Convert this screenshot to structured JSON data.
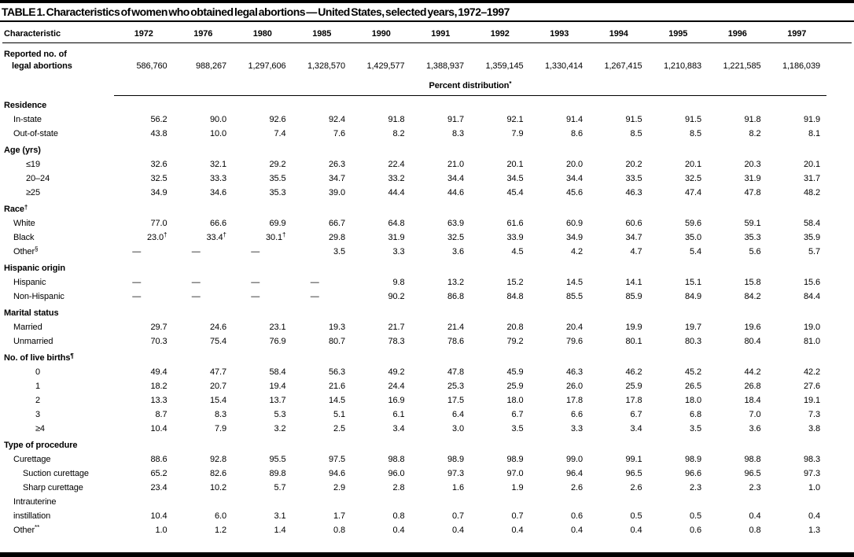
{
  "title": "TABLE 1. Characteristics of women who obtained legal abortions — United States, selected years, 1972–1997",
  "header": {
    "characteristic_label": "Characteristic",
    "years": [
      "1972",
      "1976",
      "1980",
      "1985",
      "1990",
      "1991",
      "1992",
      "1993",
      "1994",
      "1995",
      "1996",
      "1997"
    ]
  },
  "reported_row": {
    "label_lines": [
      "Reported no. of",
      "legal abortions"
    ],
    "values": [
      "586,760",
      "988,267",
      "1,297,606",
      "1,328,570",
      "1,429,577",
      "1,388,937",
      "1,359,145",
      "1,330,414",
      "1,267,415",
      "1,210,883",
      "1,221,585",
      "1,186,039"
    ]
  },
  "percent_distribution_label": "Percent distribution*",
  "sections": [
    {
      "header": "Residence",
      "rows": [
        {
          "label": "In-state",
          "indent": 1,
          "values": [
            "56.2",
            "90.0",
            "92.6",
            "92.4",
            "91.8",
            "91.7",
            "92.1",
            "91.4",
            "91.5",
            "91.5",
            "91.8",
            "91.9"
          ]
        },
        {
          "label": "Out-of-state",
          "indent": 1,
          "values": [
            "43.8",
            "10.0",
            "7.4",
            "7.6",
            "8.2",
            "8.3",
            "7.9",
            "8.6",
            "8.5",
            "8.5",
            "8.2",
            "8.1"
          ]
        }
      ]
    },
    {
      "header": "Age (yrs)",
      "rows": [
        {
          "label": "≤19",
          "indent": 3,
          "values": [
            "32.6",
            "32.1",
            "29.2",
            "26.3",
            "22.4",
            "21.0",
            "20.1",
            "20.0",
            "20.2",
            "20.1",
            "20.3",
            "20.1"
          ]
        },
        {
          "label": "20–24",
          "indent": 3,
          "values": [
            "32.5",
            "33.3",
            "35.5",
            "34.7",
            "33.2",
            "34.4",
            "34.5",
            "34.4",
            "33.5",
            "32.5",
            "31.9",
            "31.7"
          ]
        },
        {
          "label": "≥25",
          "indent": 3,
          "values": [
            "34.9",
            "34.6",
            "35.3",
            "39.0",
            "44.4",
            "44.6",
            "45.4",
            "45.6",
            "46.3",
            "47.4",
            "47.8",
            "48.2"
          ]
        }
      ]
    },
    {
      "header": "Race†",
      "rows": [
        {
          "label": "White",
          "indent": 1,
          "values": [
            "77.0",
            "66.6",
            "69.9",
            "66.7",
            "64.8",
            "63.9",
            "61.6",
            "60.9",
            "60.6",
            "59.6",
            "59.1",
            "58.4"
          ]
        },
        {
          "label": "Black",
          "indent": 1,
          "values": [
            "23.0†",
            "33.4†",
            "30.1†",
            "29.8",
            "31.9",
            "32.5",
            "33.9",
            "34.9",
            "34.7",
            "35.0",
            "35.3",
            "35.9"
          ]
        },
        {
          "label": "Other§",
          "indent": 1,
          "values": [
            "—",
            "—",
            "—",
            "3.5",
            "3.3",
            "3.6",
            "4.5",
            "4.2",
            "4.7",
            "5.4",
            "5.6",
            "5.7"
          ]
        }
      ]
    },
    {
      "header": "Hispanic origin",
      "rows": [
        {
          "label": "Hispanic",
          "indent": 1,
          "values": [
            "—",
            "—",
            "—",
            "—",
            "9.8",
            "13.2",
            "15.2",
            "14.5",
            "14.1",
            "15.1",
            "15.8",
            "15.6"
          ]
        },
        {
          "label": "Non-Hispanic",
          "indent": 1,
          "values": [
            "—",
            "—",
            "—",
            "—",
            "90.2",
            "86.8",
            "84.8",
            "85.5",
            "85.9",
            "84.9",
            "84.2",
            "84.4"
          ]
        }
      ]
    },
    {
      "header": "Marital status",
      "rows": [
        {
          "label": "Married",
          "indent": 1,
          "values": [
            "29.7",
            "24.6",
            "23.1",
            "19.3",
            "21.7",
            "21.4",
            "20.8",
            "20.4",
            "19.9",
            "19.7",
            "19.6",
            "19.0"
          ]
        },
        {
          "label": "Unmarried",
          "indent": 1,
          "values": [
            "70.3",
            "75.4",
            "76.9",
            "80.7",
            "78.3",
            "78.6",
            "79.2",
            "79.6",
            "80.1",
            "80.3",
            "80.4",
            "81.0"
          ]
        }
      ]
    },
    {
      "header": "No. of live births¶",
      "rows": [
        {
          "label": "0",
          "indent": 4,
          "values": [
            "49.4",
            "47.7",
            "58.4",
            "56.3",
            "49.2",
            "47.8",
            "45.9",
            "46.3",
            "46.2",
            "45.2",
            "44.2",
            "42.2"
          ]
        },
        {
          "label": "1",
          "indent": 4,
          "values": [
            "18.2",
            "20.7",
            "19.4",
            "21.6",
            "24.4",
            "25.3",
            "25.9",
            "26.0",
            "25.9",
            "26.5",
            "26.8",
            "27.6"
          ]
        },
        {
          "label": "2",
          "indent": 4,
          "values": [
            "13.3",
            "15.4",
            "13.7",
            "14.5",
            "16.9",
            "17.5",
            "18.0",
            "17.8",
            "17.8",
            "18.0",
            "18.4",
            "19.1"
          ]
        },
        {
          "label": "3",
          "indent": 4,
          "values": [
            "8.7",
            "8.3",
            "5.3",
            "5.1",
            "6.1",
            "6.4",
            "6.7",
            "6.6",
            "6.7",
            "6.8",
            "7.0",
            "7.3"
          ]
        },
        {
          "label": "≥4",
          "indent": 4,
          "values": [
            "10.4",
            "7.9",
            "3.2",
            "2.5",
            "3.4",
            "3.0",
            "3.5",
            "3.3",
            "3.4",
            "3.5",
            "3.6",
            "3.8"
          ]
        }
      ]
    },
    {
      "header": "Type of procedure",
      "rows": [
        {
          "label": "Curettage",
          "indent": 1,
          "values": [
            "88.6",
            "92.8",
            "95.5",
            "97.5",
            "98.8",
            "98.9",
            "98.9",
            "99.0",
            "99.1",
            "98.9",
            "98.8",
            "98.3"
          ]
        },
        {
          "label": "Suction curettage",
          "indent": 2,
          "values": [
            "65.2",
            "82.6",
            "89.8",
            "94.6",
            "96.0",
            "97.3",
            "97.0",
            "96.4",
            "96.5",
            "96.6",
            "96.5",
            "97.3"
          ]
        },
        {
          "label": "Sharp curettage",
          "indent": 2,
          "values": [
            "23.4",
            "10.2",
            "5.7",
            "2.9",
            "2.8",
            "1.6",
            "1.9",
            "2.6",
            "2.6",
            "2.3",
            "2.3",
            "1.0"
          ]
        },
        {
          "label": "Intrauterine",
          "indent": 1,
          "values": []
        },
        {
          "label": "instillation",
          "indent": 1,
          "values": [
            "10.4",
            "6.0",
            "3.1",
            "1.7",
            "0.8",
            "0.7",
            "0.7",
            "0.6",
            "0.5",
            "0.5",
            "0.4",
            "0.4"
          ]
        },
        {
          "label": "Other**",
          "indent": 1,
          "values": [
            "1.0",
            "1.2",
            "1.4",
            "0.8",
            "0.4",
            "0.4",
            "0.4",
            "0.4",
            "0.4",
            "0.6",
            "0.8",
            "1.3"
          ]
        }
      ]
    }
  ]
}
